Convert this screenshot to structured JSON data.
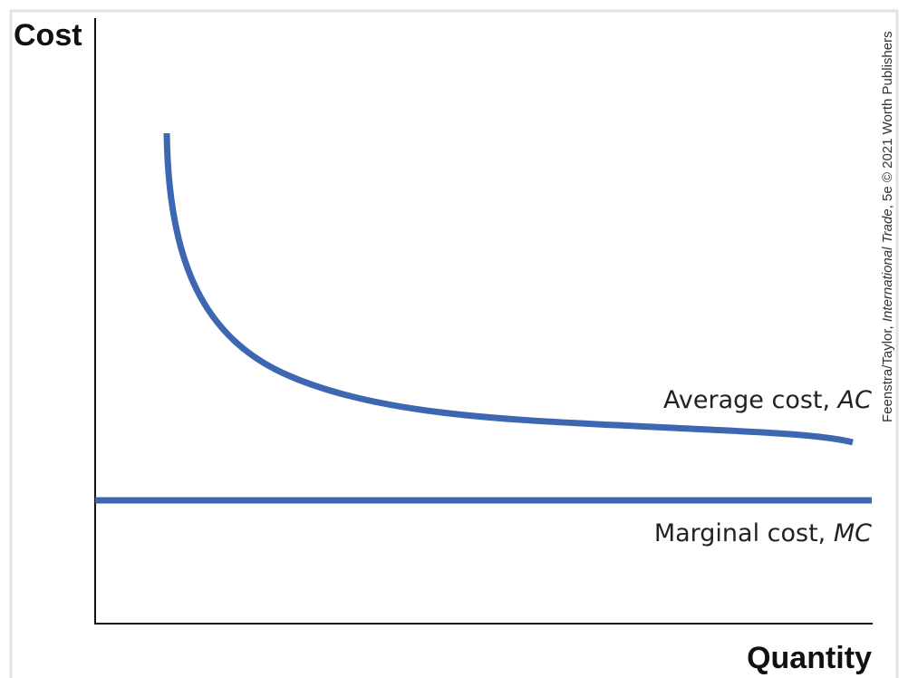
{
  "axes": {
    "y_label": "Cost",
    "x_label": "Quantity"
  },
  "curves": {
    "average_cost": {
      "label": "Average cost, ",
      "abbr": "AC"
    },
    "marginal_cost": {
      "label": "Marginal cost, ",
      "abbr": "MC"
    }
  },
  "credit": {
    "authors": "Feenstra/Taylor, ",
    "book": "International Trade",
    "rest": ", 5e © 2021 Worth Publishers"
  }
}
